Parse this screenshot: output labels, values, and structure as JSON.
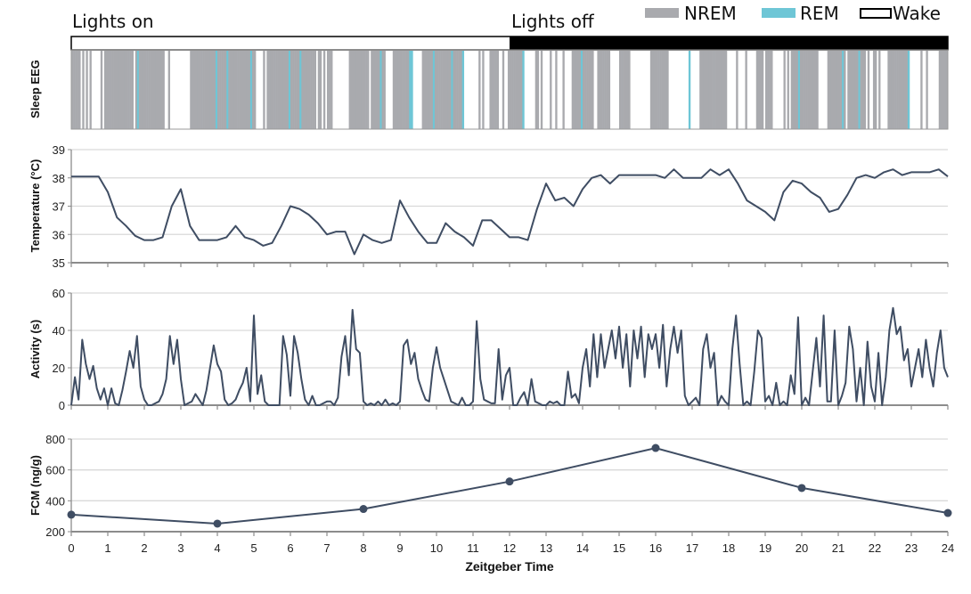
{
  "labels": {
    "lights_on": "Lights on",
    "lights_off": "Lights off"
  },
  "legend": [
    {
      "name": "NREM",
      "color": "#a9aaae"
    },
    {
      "name": "REM",
      "color": "#6ec6d6"
    },
    {
      "name": "Wake",
      "color": "#ffffff"
    }
  ],
  "colors": {
    "line": "#3f4d63",
    "grid": "#d9d9d9",
    "axis": "#8c8c8c",
    "dark": "#000000"
  },
  "chart_data": [
    {
      "type": "heatmap",
      "ylabel": "Sleep EEG",
      "xlim": [
        0,
        24
      ],
      "light_phase": [
        {
          "from": 0,
          "to": 12,
          "state": "light"
        },
        {
          "from": 12,
          "to": 24,
          "state": "dark"
        }
      ],
      "epoch_hours": 0.05,
      "state_codes": {
        "N": "NREM",
        "R": "REM",
        "W": "Wake"
      },
      "hypnogram_by_hour": [
        "NNNNNWNWNWNWWWWWNWNN",
        "NNNNNNNNNNNNNNWNRNNN",
        "NNNNNNNNNNNWWNWWWWWW",
        "WWWWWNNNNNNNNNNNNNNR",
        "NNNNNRNNNNNNNNNNNNRN",
        "NWWWWNWNNNNNNNNNNNNR",
        "NNNNNRNNNNNNNNWNNWNW",
        "NNNWWWWWWWWWNNNNNNNN",
        "NNNWNNNNNRNNWWWWNNNN",
        "NNNNNRRWWWWWNNNNNNRN",
        "NNNNNNNNRNNNNNRWWWWW",
        "WWWNWNWWWNNNNNWWNWWN",
        "NNNNNNNRWWWWWWNNWNWW",
        "WWNWWNWWWNWWWWNNNNNR",
        "NNNNNNWWNNNNNNNWWWWW",
        "NNNNNNWWWWWWWWWWWNNN",
        "NNNNNNNWWWWWWWWWWWRW",
        "WWWWNNNNNNNNNNNNNNNW",
        "WWWWNWWWWNWWWWWNNNNW",
        "NNNNWWWWWWNWNWNNNNRN",
        "NNNNNNNNNWWWWWNNNNNN",
        "NNRNWNNNNNNRNNNWNWWN",
        "NWNWWWWNNNNNNNNNNNRW",
        "WWWWWNWWNWWWWWWNNNNN"
      ]
    },
    {
      "type": "line",
      "ylabel": "Temperature (°C)",
      "xlim": [
        0,
        24
      ],
      "ylim": [
        35,
        39
      ],
      "yticks": [
        35,
        36,
        37,
        38,
        39
      ],
      "x_step_hours": 0.25,
      "values": [
        38.05,
        38.05,
        38.05,
        38.05,
        37.5,
        36.6,
        36.3,
        35.95,
        35.8,
        35.8,
        35.9,
        37.0,
        37.6,
        36.3,
        35.8,
        35.8,
        35.8,
        35.9,
        36.3,
        35.9,
        35.8,
        35.6,
        35.7,
        36.3,
        37.0,
        36.9,
        36.7,
        36.4,
        36.0,
        36.1,
        36.1,
        35.3,
        36.0,
        35.8,
        35.7,
        35.8,
        37.2,
        36.6,
        36.1,
        35.7,
        35.7,
        36.4,
        36.1,
        35.9,
        35.6,
        36.5,
        36.5,
        36.2,
        35.9,
        35.9,
        35.8,
        36.9,
        37.8,
        37.2,
        37.3,
        37.0,
        37.6,
        38.0,
        38.1,
        37.8,
        38.1,
        38.1,
        38.1,
        38.1,
        38.1,
        38.0,
        38.3,
        38.0,
        38.0,
        38.0,
        38.3,
        38.1,
        38.3,
        37.8,
        37.2,
        37.0,
        36.8,
        36.5,
        37.5,
        37.9,
        37.8,
        37.5,
        37.3,
        36.8,
        36.9,
        37.4,
        38.0,
        38.1,
        38.0,
        38.2,
        38.3,
        38.1,
        38.2,
        38.2,
        38.2,
        38.3,
        38.05
      ]
    },
    {
      "type": "line",
      "ylabel": "Activity (s)",
      "xlim": [
        0,
        24
      ],
      "ylim": [
        0,
        60
      ],
      "yticks": [
        0,
        20,
        40,
        60
      ],
      "x_step_hours": 0.1,
      "values": [
        0,
        15,
        3,
        35,
        22,
        14,
        21,
        9,
        3,
        9,
        0,
        9,
        1,
        0,
        8,
        18,
        29,
        20,
        37,
        10,
        3,
        0,
        0,
        1,
        2,
        6,
        14,
        37,
        22,
        35,
        14,
        0,
        1,
        2,
        6,
        3,
        0,
        8,
        20,
        32,
        22,
        18,
        3,
        0,
        1,
        3,
        8,
        12,
        20,
        2,
        48,
        6,
        16,
        2,
        0,
        0,
        0,
        0,
        37,
        27,
        5,
        37,
        28,
        14,
        3,
        0,
        5,
        0,
        0,
        1,
        2,
        2,
        0,
        4,
        26,
        37,
        16,
        51,
        30,
        28,
        2,
        0,
        1,
        0,
        2,
        0,
        3,
        0,
        1,
        0,
        2,
        32,
        35,
        22,
        28,
        14,
        8,
        3,
        2,
        20,
        31,
        20,
        14,
        8,
        2,
        1,
        0,
        4,
        0,
        0,
        2,
        45,
        14,
        3,
        2,
        1,
        1,
        30,
        3,
        16,
        20,
        0,
        0,
        4,
        7,
        0,
        14,
        2,
        1,
        0,
        0,
        2,
        1,
        2,
        0,
        0,
        18,
        4,
        6,
        1,
        20,
        30,
        10,
        38,
        15,
        38,
        20,
        30,
        40,
        25,
        42,
        20,
        38,
        10,
        40,
        25,
        42,
        15,
        38,
        30,
        38,
        20,
        43,
        10,
        30,
        42,
        28,
        40,
        5,
        0,
        2,
        4,
        0,
        30,
        38,
        20,
        28,
        0,
        5,
        2,
        0,
        30,
        48,
        22,
        0,
        2,
        0,
        18,
        40,
        36,
        2,
        5,
        0,
        12,
        0,
        2,
        0,
        16,
        6,
        47,
        0,
        4,
        0,
        18,
        36,
        10,
        48,
        2,
        2,
        40,
        0,
        5,
        12,
        42,
        30,
        2,
        20,
        0,
        34,
        10,
        2,
        28,
        0,
        15,
        40,
        52,
        38,
        42,
        24,
        30,
        10,
        20,
        30,
        15,
        35,
        20,
        10,
        28,
        40,
        20,
        15
      ]
    },
    {
      "type": "line",
      "ylabel": "FCM (ng/g)",
      "xlabel": "Zeitgeber Time",
      "xlim": [
        0,
        24
      ],
      "ylim": [
        200,
        800
      ],
      "yticks": [
        200,
        400,
        600,
        800
      ],
      "xticks": [
        "0",
        "1",
        "2",
        "3",
        "4",
        "5",
        "6",
        "7",
        "8",
        "9",
        "10",
        "11",
        "12",
        "13",
        "14",
        "15",
        "16",
        "17",
        "18",
        "19",
        "20",
        "21",
        "22",
        "23",
        "24"
      ],
      "x": [
        0,
        4,
        8,
        12,
        16,
        20,
        24
      ],
      "values": [
        310,
        252,
        347,
        525,
        742,
        483,
        321
      ],
      "markers": true
    }
  ]
}
